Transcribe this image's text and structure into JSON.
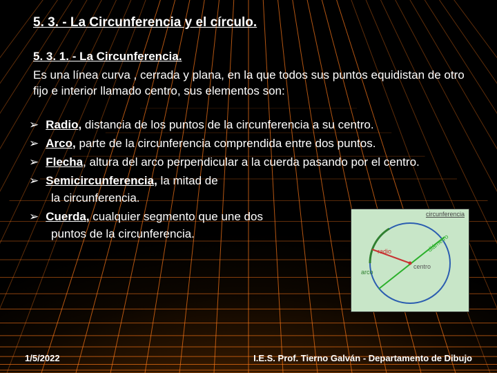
{
  "title": "5. 3. - La Circunferencia y el círculo.",
  "subtitle": "5. 3. 1. - La Circunferencia.",
  "definition": " Es una línea curva , cerrada y plana, en la que todos sus puntos equidistan de otro fijo e interior llamado centro, sus elementos son:",
  "bullets": [
    {
      "term": "Radio,",
      "text": " distancia de los puntos de la circunferencia a su centro."
    },
    {
      "term": "Arco,",
      "text": " parte de la circunferencia comprendida entre dos puntos."
    },
    {
      "term": "Flecha",
      "text": ", altura del arco perpendicular a la cuerda pasando por el centro."
    },
    {
      "term": "Semicircunferencia,",
      "text": " la mitad de"
    },
    {
      "term": "Cuerda,",
      "text": " cualquier segmento que une dos"
    }
  ],
  "continuations": {
    "3": "la circunferencia.",
    "4": "puntos de la circunferencia."
  },
  "diagram": {
    "title": "circunferencia",
    "labels": {
      "radio": "radio",
      "arco": "arco",
      "centro": "centro",
      "diametro": "diámetro"
    },
    "colors": {
      "bg": "#c8e6c8",
      "circle": "#2b5db0",
      "radio": "#c83232",
      "diametro": "#2bb02b",
      "arco": "#308030",
      "centro_dot": "#c83232"
    }
  },
  "grid": {
    "line_color": "#ff7a1a",
    "spacing": 28,
    "count": 28
  },
  "footer": {
    "date": "1/5/2022",
    "org": "I.E.S. Prof. Tierno Galván - Departamento de Dibujo"
  }
}
